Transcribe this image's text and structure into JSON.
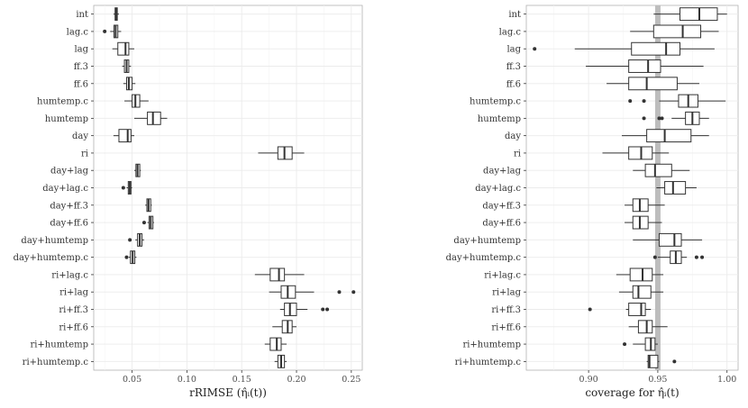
{
  "chart_data": [
    {
      "type": "boxplot",
      "xlabel": "rRIMSE (η̂ᵢ(t))",
      "xlim": [
        0.015,
        0.26
      ],
      "xticks": [
        0.05,
        0.1,
        0.15,
        0.2,
        0.25
      ],
      "xtick_labels": [
        "0.05",
        "0.10",
        "0.15",
        "0.20",
        "0.25"
      ],
      "grid": true,
      "reference_line": null,
      "categories": [
        "int",
        "lag.c",
        "lag",
        "ff.3",
        "ff.6",
        "humtemp.c",
        "humtemp",
        "day",
        "ri",
        "day+lag",
        "day+lag.c",
        "day+ff.3",
        "day+ff.6",
        "day+humtemp",
        "day+humtemp.c",
        "ri+lag.c",
        "ri+lag",
        "ri+ff.3",
        "ri+ff.6",
        "ri+humtemp",
        "ri+humtemp.c"
      ],
      "series": [
        {
          "name": "int",
          "stats": [
            0.033,
            0.0345,
            0.0355,
            0.0365,
            0.038
          ],
          "outliers": []
        },
        {
          "name": "lag.c",
          "stats": [
            0.03,
            0.0335,
            0.035,
            0.037,
            0.04
          ],
          "outliers": [
            0.025
          ]
        },
        {
          "name": "lag",
          "stats": [
            0.032,
            0.037,
            0.044,
            0.047,
            0.052
          ],
          "outliers": []
        },
        {
          "name": "ff.3",
          "stats": [
            0.041,
            0.043,
            0.045,
            0.047,
            0.049
          ],
          "outliers": []
        },
        {
          "name": "ff.6",
          "stats": [
            0.042,
            0.045,
            0.047,
            0.05,
            0.053
          ],
          "outliers": []
        },
        {
          "name": "humtemp.c",
          "stats": [
            0.043,
            0.05,
            0.053,
            0.057,
            0.065
          ],
          "outliers": []
        },
        {
          "name": "humtemp",
          "stats": [
            0.052,
            0.064,
            0.069,
            0.076,
            0.082
          ],
          "outliers": []
        },
        {
          "name": "day",
          "stats": [
            0.033,
            0.038,
            0.046,
            0.049,
            0.052
          ],
          "outliers": []
        },
        {
          "name": "ri",
          "stats": [
            0.165,
            0.183,
            0.189,
            0.196,
            0.207
          ],
          "outliers": []
        },
        {
          "name": "day+lag",
          "stats": [
            0.052,
            0.0535,
            0.055,
            0.057,
            0.058
          ],
          "outliers": []
        },
        {
          "name": "day+lag.c",
          "stats": [
            0.045,
            0.0465,
            0.0478,
            0.049,
            0.05
          ],
          "outliers": [
            0.042
          ]
        },
        {
          "name": "day+ff.3",
          "stats": [
            0.062,
            0.0635,
            0.065,
            0.067,
            0.068
          ],
          "outliers": []
        },
        {
          "name": "day+ff.6",
          "stats": [
            0.064,
            0.0655,
            0.067,
            0.069,
            0.07
          ],
          "outliers": [
            0.061
          ]
        },
        {
          "name": "day+humtemp",
          "stats": [
            0.053,
            0.055,
            0.057,
            0.059,
            0.061
          ],
          "outliers": [
            0.048
          ]
        },
        {
          "name": "day+humtemp.c",
          "stats": [
            0.047,
            0.0485,
            0.0505,
            0.0525,
            0.054
          ],
          "outliers": [
            0.045
          ]
        },
        {
          "name": "ri+lag.c",
          "stats": [
            0.162,
            0.176,
            0.184,
            0.189,
            0.207
          ],
          "outliers": []
        },
        {
          "name": "ri+lag",
          "stats": [
            0.175,
            0.186,
            0.192,
            0.199,
            0.216
          ],
          "outliers": [
            0.239,
            0.252
          ]
        },
        {
          "name": "ri+ff.3",
          "stats": [
            0.185,
            0.189,
            0.194,
            0.2,
            0.21
          ],
          "outliers": [
            0.224,
            0.228
          ]
        },
        {
          "name": "ri+ff.6",
          "stats": [
            0.178,
            0.187,
            0.192,
            0.196,
            0.2
          ],
          "outliers": []
        },
        {
          "name": "ri+humtemp",
          "stats": [
            0.171,
            0.176,
            0.182,
            0.186,
            0.191
          ],
          "outliers": []
        },
        {
          "name": "ri+humtemp.c",
          "stats": [
            0.18,
            0.183,
            0.186,
            0.189,
            0.191
          ],
          "outliers": []
        }
      ]
    },
    {
      "type": "boxplot",
      "xlabel": "coverage for η̂ᵢ(t)",
      "xlim": [
        0.855,
        1.008
      ],
      "xticks": [
        0.9,
        0.95,
        1.0
      ],
      "xtick_labels": [
        "0.90",
        "0.95",
        "1.00"
      ],
      "grid": true,
      "reference_line": 0.95,
      "categories": [
        "int",
        "lag.c",
        "lag",
        "ff.3",
        "ff.6",
        "humtemp.c",
        "humtemp",
        "day",
        "ri",
        "day+lag",
        "day+lag.c",
        "day+ff.3",
        "day+ff.6",
        "day+humtemp",
        "day+humtemp.c",
        "ri+lag.c",
        "ri+lag",
        "ri+ff.3",
        "ri+ff.6",
        "ri+humtemp",
        "ri+humtemp.c"
      ],
      "series": [
        {
          "name": "int",
          "stats": [
            0.947,
            0.966,
            0.98,
            0.993,
            1.0
          ],
          "outliers": []
        },
        {
          "name": "lag.c",
          "stats": [
            0.93,
            0.947,
            0.968,
            0.981,
            0.994
          ],
          "outliers": []
        },
        {
          "name": "lag",
          "stats": [
            0.89,
            0.931,
            0.956,
            0.966,
            0.991
          ],
          "outliers": [
            0.861
          ]
        },
        {
          "name": "ff.3",
          "stats": [
            0.898,
            0.929,
            0.943,
            0.952,
            0.983
          ],
          "outliers": []
        },
        {
          "name": "ff.6",
          "stats": [
            0.913,
            0.929,
            0.942,
            0.964,
            0.98
          ],
          "outliers": []
        },
        {
          "name": "humtemp.c",
          "stats": [
            0.951,
            0.965,
            0.972,
            0.979,
            0.999
          ],
          "outliers": [
            0.93,
            0.94
          ]
        },
        {
          "name": "humtemp",
          "stats": [
            0.96,
            0.97,
            0.975,
            0.98,
            0.987
          ],
          "outliers": [
            0.94,
            0.951,
            0.953
          ]
        },
        {
          "name": "day",
          "stats": [
            0.924,
            0.942,
            0.955,
            0.974,
            0.987
          ],
          "outliers": []
        },
        {
          "name": "ri",
          "stats": [
            0.91,
            0.929,
            0.938,
            0.946,
            0.958
          ],
          "outliers": []
        },
        {
          "name": "day+lag",
          "stats": [
            0.932,
            0.941,
            0.948,
            0.96,
            0.973
          ],
          "outliers": []
        },
        {
          "name": "day+lag.c",
          "stats": [
            0.949,
            0.955,
            0.961,
            0.97,
            0.978
          ],
          "outliers": []
        },
        {
          "name": "day+ff.3",
          "stats": [
            0.926,
            0.932,
            0.937,
            0.943,
            0.955
          ],
          "outliers": []
        },
        {
          "name": "day+ff.6",
          "stats": [
            0.926,
            0.932,
            0.937,
            0.943,
            0.953
          ],
          "outliers": []
        },
        {
          "name": "day+humtemp",
          "stats": [
            0.932,
            0.951,
            0.962,
            0.967,
            0.982
          ],
          "outliers": []
        },
        {
          "name": "day+humtemp.c",
          "stats": [
            0.95,
            0.959,
            0.963,
            0.967,
            0.971
          ],
          "outliers": [
            0.948,
            0.978,
            0.982
          ]
        },
        {
          "name": "ri+lag.c",
          "stats": [
            0.92,
            0.93,
            0.939,
            0.946,
            0.954
          ],
          "outliers": []
        },
        {
          "name": "ri+lag",
          "stats": [
            0.922,
            0.932,
            0.936,
            0.945,
            0.954
          ],
          "outliers": []
        },
        {
          "name": "ri+ff.3",
          "stats": [
            0.927,
            0.929,
            0.938,
            0.941,
            0.945
          ],
          "outliers": [
            0.901
          ]
        },
        {
          "name": "ri+ff.6",
          "stats": [
            0.929,
            0.936,
            0.942,
            0.946,
            0.957
          ],
          "outliers": []
        },
        {
          "name": "ri+humtemp",
          "stats": [
            0.932,
            0.941,
            0.945,
            0.948,
            0.95
          ],
          "outliers": [
            0.926
          ]
        },
        {
          "name": "ri+humtemp.c",
          "stats": [
            0.942,
            0.943,
            0.944,
            0.95,
            0.951
          ],
          "outliers": [
            0.962
          ]
        }
      ]
    }
  ]
}
